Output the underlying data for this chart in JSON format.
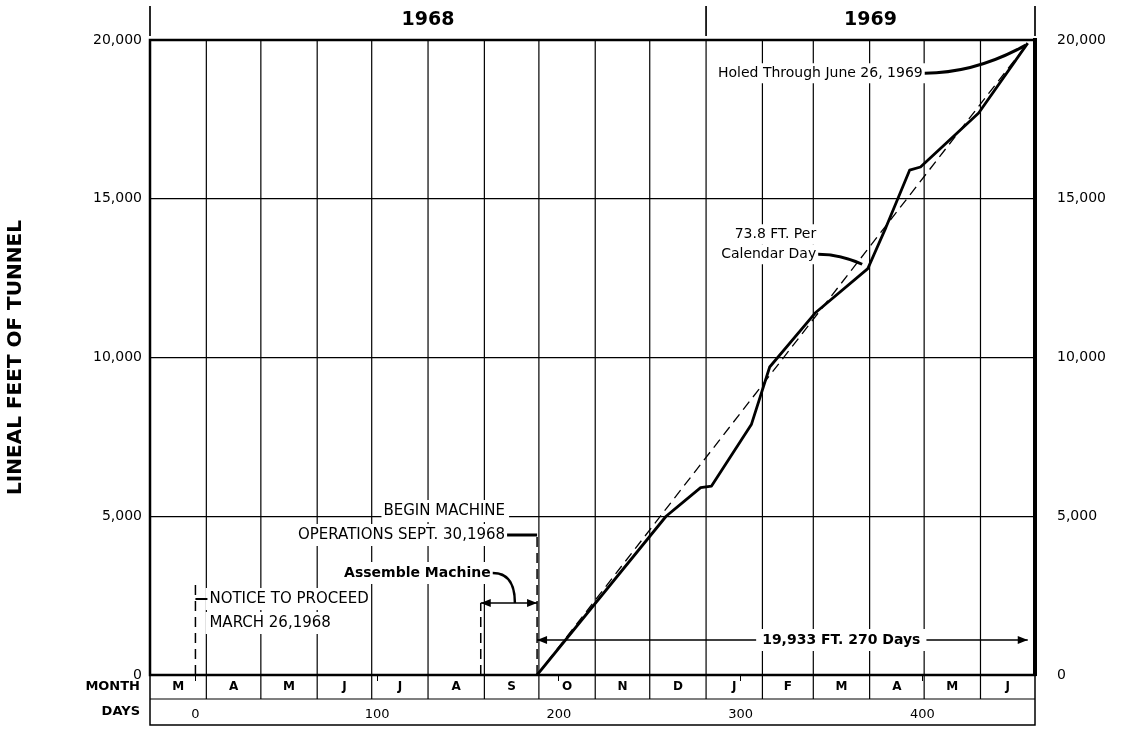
{
  "chart_data": {
    "type": "line",
    "ylabel": "LINEAL FEET OF TUNNEL",
    "xlabel": "DAYS",
    "marker": "none",
    "grid": "y",
    "xlim": [
      -25,
      462
    ],
    "xticks": [
      0,
      100,
      200,
      300,
      400
    ],
    "ylim": [
      0,
      20000
    ],
    "yticks": [
      0,
      {
        "value": 5000,
        "label": "5,000"
      },
      {
        "value": 10000,
        "label": "10,000"
      },
      {
        "value": 15000,
        "label": "15,000"
      },
      {
        "value": 20000,
        "label": "20,000"
      }
    ],
    "y2lim": [
      0,
      20000
    ],
    "y2ticks": [
      0,
      {
        "value": 5000,
        "label": "5,000"
      },
      {
        "value": 10000,
        "label": "10,000"
      },
      {
        "value": 15000,
        "label": "15,000"
      },
      {
        "value": 20000,
        "label": "20,000"
      }
    ],
    "series": [
      {
        "color": "#000000",
        "line_style": "solid",
        "x": [
          188,
          259,
          278,
          284,
          306,
          316,
          341,
          370,
          380,
          393,
          399,
          431,
          458
        ],
        "values": [
          0,
          5000,
          5900,
          5950,
          7900,
          9700,
          11400,
          12800,
          14100,
          15900,
          16000,
          17700,
          19900
        ]
      },
      {
        "color": "#000000",
        "line_style": "dashed",
        "x": [
          188,
          458
        ],
        "values": [
          0,
          19900
        ]
      }
    ],
    "annotations": [
      {
        "text": "Holed Through June 26, 1969",
        "x": 458,
        "y": 19900
      },
      {
        "text": "73.8 FT. Per\nCalendar Day",
        "x": 368,
        "y": 13000
      },
      "Assemble Machine",
      "19,933 FT. 270 Days",
      "MONTH",
      "1968",
      "1969",
      "M",
      "A",
      "M",
      "J",
      "J",
      "A",
      "S",
      "O",
      "N",
      "D",
      "J",
      "F",
      "M",
      "A",
      "M",
      "J"
    ],
    "ref_lines": [
      {
        "axis": "x",
        "value": 0,
        "label": "NOTICE TO PROCEED\nMARCH 26,1968",
        "line_style": "dashed"
      },
      {
        "axis": "x",
        "value": 157,
        "line_style": "dashed"
      },
      {
        "axis": "x",
        "value": 188,
        "label": "BEGIN MACHINE\nOPERATIONS SEPT. 30,1968",
        "line_style": "dashed"
      },
      {
        "axis": "x",
        "value": 6,
        "color": "#000000",
        "line_style": "solid"
      },
      {
        "axis": "x",
        "value": 36,
        "color": "#000000",
        "line_style": "solid"
      },
      {
        "axis": "x",
        "value": 67,
        "color": "#000000",
        "line_style": "solid"
      },
      {
        "axis": "x",
        "value": 97,
        "color": "#000000",
        "line_style": "solid"
      },
      {
        "axis": "x",
        "value": 128,
        "color": "#000000",
        "line_style": "solid"
      },
      {
        "axis": "x",
        "value": 159,
        "color": "#000000",
        "line_style": "solid"
      },
      {
        "axis": "x",
        "value": 189,
        "color": "#000000",
        "line_style": "solid"
      },
      {
        "axis": "x",
        "value": 220,
        "color": "#000000",
        "line_style": "solid"
      },
      {
        "axis": "x",
        "value": 250,
        "color": "#000000",
        "line_style": "solid"
      },
      {
        "axis": "x",
        "value": 281,
        "color": "#000000",
        "line_style": "solid"
      },
      {
        "axis": "x",
        "value": 312,
        "color": "#000000",
        "line_style": "solid"
      },
      {
        "axis": "x",
        "value": 340,
        "color": "#000000",
        "line_style": "solid"
      },
      {
        "axis": "x",
        "value": 371,
        "color": "#000000",
        "line_style": "solid"
      },
      {
        "axis": "x",
        "value": 401,
        "color": "#000000",
        "line_style": "solid"
      },
      {
        "axis": "x",
        "value": 432,
        "color": "#000000",
        "line_style": "solid"
      }
    ]
  }
}
